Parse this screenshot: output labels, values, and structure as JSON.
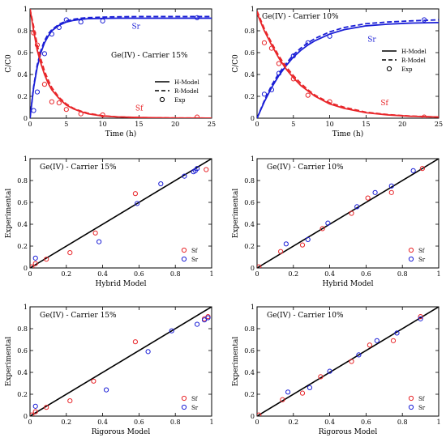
{
  "colors": {
    "sf": "#e8262a",
    "sr": "#1b1fd6",
    "axis": "#000000",
    "diag": "#000000"
  },
  "chart_data": [
    {
      "id": "kinetics-15",
      "type": "line",
      "title": "Ge(IV) - Carrier 15%",
      "xlabel": "Time (h)",
      "ylabel": "C/C0",
      "xlim": [
        0,
        25
      ],
      "ylim": [
        0,
        1
      ],
      "xticks": [
        0,
        5,
        10,
        15,
        20,
        25
      ],
      "yticks": [
        0,
        0.2,
        0.4,
        0.6,
        0.8,
        1
      ],
      "xtick_labels": [
        "0",
        "5",
        "10",
        "15",
        "20",
        "25"
      ],
      "ytick_labels": [
        "0",
        "0.2",
        "0.4",
        "0.6",
        "0.8",
        "1"
      ],
      "legend": {
        "placement": "bottom-right",
        "entries": [
          "H-Model",
          "R-Model",
          "Exp"
        ]
      },
      "curve_labels": {
        "sr": "Sr",
        "sf": "Sf"
      },
      "series": [
        {
          "name": "Sr",
          "color": "sr",
          "kind": "H-Model",
          "x": [
            0,
            0.5,
            1,
            1.5,
            2,
            2.5,
            3,
            4,
            5,
            6,
            7,
            8,
            10,
            12,
            15,
            20,
            25
          ],
          "y": [
            0,
            0.28,
            0.47,
            0.6,
            0.69,
            0.75,
            0.8,
            0.85,
            0.88,
            0.895,
            0.905,
            0.91,
            0.913,
            0.915,
            0.915,
            0.915,
            0.915
          ]
        },
        {
          "name": "Sr",
          "color": "sr",
          "kind": "R-Model",
          "x": [
            0,
            0.5,
            1,
            1.5,
            2,
            2.5,
            3,
            4,
            5,
            6,
            7,
            8,
            10,
            12,
            15,
            20,
            25
          ],
          "y": [
            0,
            0.29,
            0.49,
            0.62,
            0.71,
            0.77,
            0.81,
            0.86,
            0.89,
            0.905,
            0.915,
            0.92,
            0.925,
            0.928,
            0.93,
            0.93,
            0.93
          ]
        },
        {
          "name": "Sr",
          "color": "sr",
          "kind": "Exp",
          "x": [
            0.5,
            1,
            2,
            3,
            4,
            5,
            7,
            10,
            23
          ],
          "y": [
            0.07,
            0.24,
            0.59,
            0.77,
            0.83,
            0.9,
            0.88,
            0.89,
            0.92
          ]
        },
        {
          "name": "Sf",
          "color": "sf",
          "kind": "H-Model",
          "x": [
            0,
            0.5,
            1,
            1.5,
            2,
            2.5,
            3,
            4,
            5,
            6,
            7,
            8,
            10,
            12,
            15,
            20,
            25
          ],
          "y": [
            1,
            0.8,
            0.62,
            0.5,
            0.4,
            0.32,
            0.26,
            0.18,
            0.12,
            0.085,
            0.06,
            0.04,
            0.02,
            0.012,
            0.006,
            0.002,
            0.001
          ]
        },
        {
          "name": "Sf",
          "color": "sf",
          "kind": "R-Model",
          "x": [
            0,
            0.5,
            1,
            1.5,
            2,
            2.5,
            3,
            4,
            5,
            6,
            7,
            8,
            10,
            12,
            15,
            20,
            25
          ],
          "y": [
            1,
            0.84,
            0.67,
            0.54,
            0.43,
            0.35,
            0.28,
            0.19,
            0.13,
            0.09,
            0.065,
            0.045,
            0.022,
            0.012,
            0.006,
            0.002,
            0.001
          ]
        },
        {
          "name": "Sf",
          "color": "sf",
          "kind": "Exp",
          "x": [
            0.5,
            1,
            2,
            3,
            4,
            5,
            7,
            10,
            23
          ],
          "y": [
            0.78,
            0.67,
            0.31,
            0.15,
            0.14,
            0.08,
            0.04,
            0.03,
            0.01
          ]
        }
      ]
    },
    {
      "id": "kinetics-10",
      "type": "line",
      "title": "Ge(IV) - Carrier 10%",
      "xlabel": "Time (h)",
      "ylabel": "C/C0",
      "xlim": [
        0,
        25
      ],
      "ylim": [
        0,
        1
      ],
      "xticks": [
        0,
        5,
        10,
        15,
        20,
        25
      ],
      "yticks": [
        0,
        0.2,
        0.4,
        0.6,
        0.8,
        1
      ],
      "xtick_labels": [
        "0",
        "5",
        "10",
        "15",
        "20",
        "25"
      ],
      "ytick_labels": [
        "0",
        "0.2",
        "0.4",
        "0.6",
        "0.8",
        "1"
      ],
      "legend": {
        "placement": "right",
        "entries": [
          "H-Model",
          "R-Model",
          "Exp"
        ]
      },
      "curve_labels": {
        "sr": "Sr",
        "sf": "Sf"
      },
      "series": [
        {
          "name": "Sr",
          "color": "sr",
          "kind": "H-Model",
          "x": [
            0,
            1,
            2,
            3,
            4,
            5,
            6,
            7,
            8,
            10,
            12,
            15,
            18,
            21,
            25
          ],
          "y": [
            0,
            0.15,
            0.28,
            0.39,
            0.48,
            0.56,
            0.62,
            0.67,
            0.71,
            0.77,
            0.81,
            0.845,
            0.86,
            0.87,
            0.875
          ]
        },
        {
          "name": "Sr",
          "color": "sr",
          "kind": "R-Model",
          "x": [
            0,
            1,
            2,
            3,
            4,
            5,
            6,
            7,
            8,
            10,
            12,
            15,
            18,
            21,
            25
          ],
          "y": [
            0,
            0.16,
            0.3,
            0.41,
            0.5,
            0.58,
            0.64,
            0.69,
            0.73,
            0.79,
            0.83,
            0.865,
            0.88,
            0.89,
            0.9
          ]
        },
        {
          "name": "Sr",
          "color": "sr",
          "kind": "Exp",
          "x": [
            1,
            2,
            3,
            5,
            7,
            10,
            23
          ],
          "y": [
            0.22,
            0.26,
            0.41,
            0.57,
            0.69,
            0.75,
            0.9
          ]
        },
        {
          "name": "Sf",
          "color": "sf",
          "kind": "H-Model",
          "x": [
            0,
            1,
            2,
            3,
            4,
            5,
            6,
            7,
            8,
            10,
            12,
            15,
            18,
            21,
            25
          ],
          "y": [
            0.96,
            0.8,
            0.67,
            0.55,
            0.45,
            0.37,
            0.3,
            0.25,
            0.2,
            0.13,
            0.09,
            0.05,
            0.03,
            0.018,
            0.01
          ]
        },
        {
          "name": "Sf",
          "color": "sf",
          "kind": "R-Model",
          "x": [
            0,
            1,
            2,
            3,
            4,
            5,
            6,
            7,
            8,
            10,
            12,
            15,
            18,
            21,
            25
          ],
          "y": [
            0.98,
            0.82,
            0.69,
            0.57,
            0.47,
            0.39,
            0.32,
            0.26,
            0.21,
            0.14,
            0.1,
            0.055,
            0.033,
            0.02,
            0.01
          ]
        },
        {
          "name": "Sf",
          "color": "sf",
          "kind": "Exp",
          "x": [
            1,
            2,
            3,
            5,
            7,
            10,
            23
          ],
          "y": [
            0.69,
            0.64,
            0.5,
            0.36,
            0.21,
            0.15,
            0.01
          ]
        }
      ]
    },
    {
      "id": "parity-hybrid-15",
      "type": "scatter",
      "title": "Ge(IV) - Carrier 15%",
      "xlabel": "Hybrid Model",
      "ylabel": "Experimental",
      "xlim": [
        0,
        1
      ],
      "ylim": [
        0,
        1
      ],
      "xticks": [
        0,
        0.2,
        0.4,
        0.6,
        0.8,
        1
      ],
      "yticks": [
        0,
        0.2,
        0.4,
        0.6,
        0.8,
        1
      ],
      "xtick_labels": [
        "0",
        "0.2",
        "0.4",
        "0.6",
        "0.8",
        "1"
      ],
      "ytick_labels": [
        "0",
        "0.2",
        "0.4",
        "0.6",
        "0.8",
        "1"
      ],
      "legend": {
        "placement": "bottom-right",
        "entries": [
          "Sf",
          "Sr"
        ]
      },
      "series": [
        {
          "name": "Sf",
          "color": "sf",
          "x": [
            0.01,
            0.03,
            0.09,
            0.22,
            0.36,
            0.58,
            0.97
          ],
          "y": [
            0.01,
            0.04,
            0.08,
            0.14,
            0.32,
            0.68,
            0.9
          ]
        },
        {
          "name": "Sr",
          "color": "sr",
          "x": [
            0.03,
            0.38,
            0.59,
            0.72,
            0.85,
            0.9,
            0.91,
            0.92
          ],
          "y": [
            0.09,
            0.24,
            0.59,
            0.77,
            0.84,
            0.88,
            0.89,
            0.91
          ]
        }
      ]
    },
    {
      "id": "parity-hybrid-10",
      "type": "scatter",
      "title": "Ge(IV) - Carrier 10%",
      "xlabel": "Hybrid Model",
      "ylabel": "Experimental",
      "xlim": [
        0,
        1
      ],
      "ylim": [
        0,
        1
      ],
      "xticks": [
        0,
        0.2,
        0.4,
        0.6,
        0.8,
        1
      ],
      "yticks": [
        0,
        0.2,
        0.4,
        0.6,
        0.8,
        1
      ],
      "xtick_labels": [
        "0",
        "0.2",
        "0.4",
        "0.6",
        "0.8",
        "1"
      ],
      "ytick_labels": [
        "0",
        "0.2",
        "0.4",
        "0.6",
        "0.8",
        "1"
      ],
      "legend": {
        "placement": "bottom-right",
        "entries": [
          "Sf",
          "Sr"
        ]
      },
      "series": [
        {
          "name": "Sf",
          "color": "sf",
          "x": [
            0.01,
            0.13,
            0.25,
            0.36,
            0.52,
            0.61,
            0.74,
            0.91
          ],
          "y": [
            0.01,
            0.15,
            0.21,
            0.36,
            0.5,
            0.64,
            0.69,
            0.91
          ]
        },
        {
          "name": "Sr",
          "color": "sr",
          "x": [
            0.16,
            0.28,
            0.39,
            0.55,
            0.65,
            0.74,
            0.86
          ],
          "y": [
            0.22,
            0.26,
            0.41,
            0.56,
            0.69,
            0.75,
            0.89
          ]
        }
      ]
    },
    {
      "id": "parity-rigorous-15",
      "type": "scatter",
      "title": "Ge(IV) - Carrier 15%",
      "xlabel": "Rigorous Model",
      "ylabel": "Experimental",
      "xlim": [
        0,
        1
      ],
      "ylim": [
        0,
        1
      ],
      "xticks": [
        0,
        0.2,
        0.4,
        0.6,
        0.8,
        1
      ],
      "yticks": [
        0,
        0.2,
        0.4,
        0.6,
        0.8,
        1
      ],
      "xtick_labels": [
        "0",
        "0.2",
        "0.4",
        "0.6",
        "0.8",
        "1"
      ],
      "ytick_labels": [
        "0",
        "0.2",
        "0.4",
        "0.6",
        "0.8",
        "1"
      ],
      "legend": {
        "placement": "bottom-right",
        "entries": [
          "Sf",
          "Sr"
        ]
      },
      "series": [
        {
          "name": "Sf",
          "color": "sf",
          "x": [
            0.01,
            0.03,
            0.09,
            0.22,
            0.35,
            0.58,
            0.96,
            0.98
          ],
          "y": [
            0.01,
            0.04,
            0.08,
            0.14,
            0.32,
            0.68,
            0.89,
            0.91
          ]
        },
        {
          "name": "Sr",
          "color": "sr",
          "x": [
            0.03,
            0.42,
            0.65,
            0.78,
            0.92,
            0.96,
            0.98
          ],
          "y": [
            0.09,
            0.24,
            0.59,
            0.78,
            0.84,
            0.88,
            0.9
          ]
        }
      ]
    },
    {
      "id": "parity-rigorous-10",
      "type": "scatter",
      "title": "Ge(IV) - Carrier 10%",
      "xlabel": "Rigorous Model",
      "ylabel": "Experimental",
      "xlim": [
        0,
        1
      ],
      "ylim": [
        0,
        1
      ],
      "xticks": [
        0,
        0.2,
        0.4,
        0.6,
        0.8,
        1
      ],
      "yticks": [
        0,
        0.2,
        0.4,
        0.6,
        0.8,
        1
      ],
      "xtick_labels": [
        "0",
        "0.2",
        "0.4",
        "0.6",
        "0.8",
        "1"
      ],
      "ytick_labels": [
        "0",
        "0.2",
        "0.4",
        "0.6",
        "0.8",
        "1"
      ],
      "legend": {
        "placement": "bottom-right",
        "entries": [
          "Sf",
          "Sr"
        ]
      },
      "series": [
        {
          "name": "Sf",
          "color": "sf",
          "x": [
            0.01,
            0.14,
            0.25,
            0.35,
            0.52,
            0.62,
            0.75,
            0.9
          ],
          "y": [
            0.01,
            0.15,
            0.21,
            0.36,
            0.5,
            0.65,
            0.69,
            0.91
          ]
        },
        {
          "name": "Sr",
          "color": "sr",
          "x": [
            0.17,
            0.29,
            0.4,
            0.56,
            0.66,
            0.77,
            0.9
          ],
          "y": [
            0.22,
            0.26,
            0.41,
            0.56,
            0.69,
            0.76,
            0.89
          ]
        }
      ]
    }
  ]
}
